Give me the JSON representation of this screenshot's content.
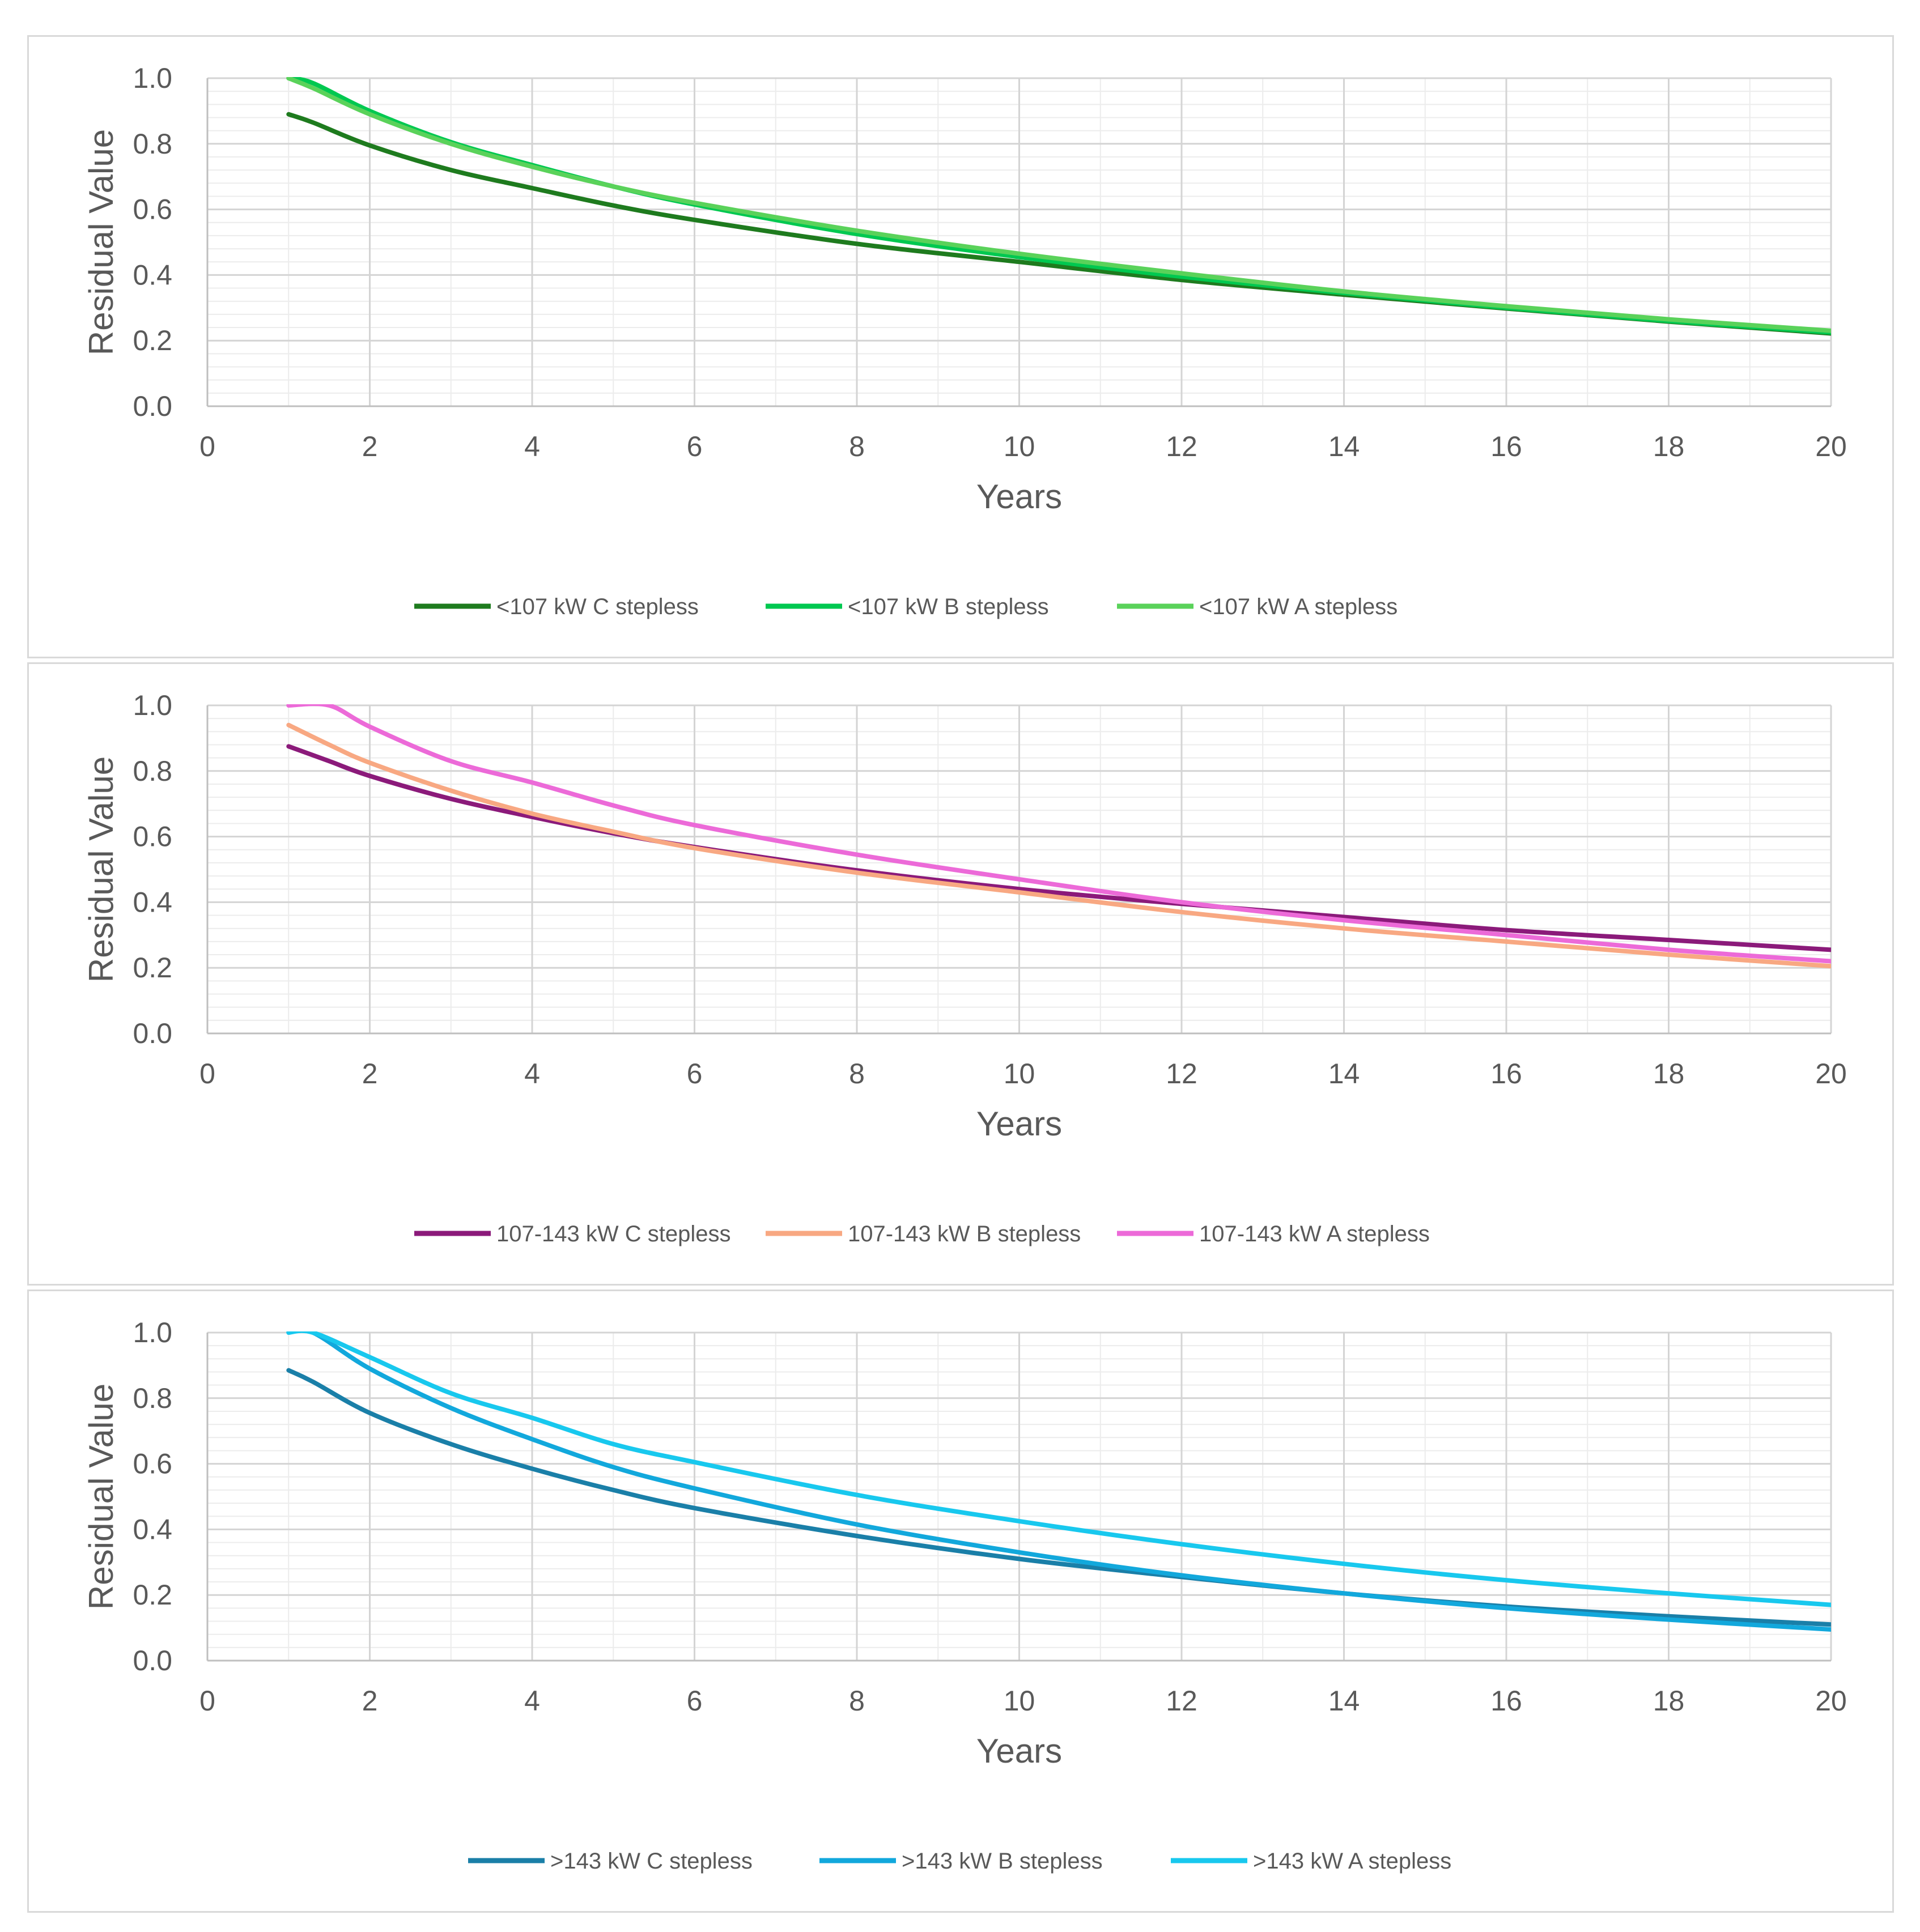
{
  "chart_data": [
    {
      "type": "line",
      "title": "",
      "xlabel": "Years",
      "ylabel": "Residual Value",
      "xlim": [
        0,
        20
      ],
      "ylim": [
        0,
        1
      ],
      "x_ticks": [
        "0",
        "2",
        "4",
        "6",
        "8",
        "10",
        "12",
        "14",
        "16",
        "18",
        "20"
      ],
      "y_ticks": [
        "0.0",
        "0.2",
        "0.4",
        "0.6",
        "0.8",
        "1.0"
      ],
      "grid": true,
      "legend_position": "bottom",
      "x": [
        1,
        1.3,
        2,
        3,
        4,
        5,
        6,
        8,
        10,
        12,
        14,
        16,
        18,
        20
      ],
      "series": [
        {
          "name": "<107 kW  C stepless",
          "color": "#1e7b1e",
          "values": [
            0.89,
            0.865,
            0.795,
            0.72,
            0.665,
            0.612,
            0.568,
            0.495,
            0.44,
            0.385,
            0.34,
            0.298,
            0.258,
            0.222
          ]
        },
        {
          "name": "<107 kW  B stepless",
          "color": "#00c850",
          "values": [
            1.0,
            0.985,
            0.9,
            0.805,
            0.735,
            0.67,
            0.615,
            0.525,
            0.455,
            0.395,
            0.345,
            0.3,
            0.26,
            0.225
          ]
        },
        {
          "name": "<107 kW  A stepless",
          "color": "#5ad25a",
          "values": [
            1.0,
            0.97,
            0.89,
            0.8,
            0.73,
            0.67,
            0.62,
            0.535,
            0.465,
            0.405,
            0.35,
            0.305,
            0.265,
            0.23
          ]
        }
      ]
    },
    {
      "type": "line",
      "title": "",
      "xlabel": "Years",
      "ylabel": "Residual Value",
      "xlim": [
        0,
        20
      ],
      "ylim": [
        0,
        1
      ],
      "x_ticks": [
        "0",
        "2",
        "4",
        "6",
        "8",
        "10",
        "12",
        "14",
        "16",
        "18",
        "20"
      ],
      "y_ticks": [
        "0.0",
        "0.2",
        "0.4",
        "0.6",
        "0.8",
        "1.0"
      ],
      "grid": true,
      "legend_position": "bottom",
      "x": [
        1,
        1.5,
        2,
        3,
        4,
        5,
        6,
        8,
        10,
        12,
        14,
        16,
        18,
        20
      ],
      "series": [
        {
          "name": "107-143 kW  C stepless",
          "color": "#8b1a7a",
          "values": [
            0.875,
            0.83,
            0.785,
            0.715,
            0.66,
            0.61,
            0.568,
            0.497,
            0.44,
            0.395,
            0.355,
            0.315,
            0.285,
            0.255
          ]
        },
        {
          "name": "107-143 kW  B stepless",
          "color": "#f8a882",
          "values": [
            0.94,
            0.88,
            0.825,
            0.74,
            0.67,
            0.615,
            0.565,
            0.49,
            0.43,
            0.37,
            0.32,
            0.28,
            0.24,
            0.205
          ]
        },
        {
          "name": "107-143 kW  A stepless",
          "color": "#ec6ad8",
          "values": [
            1.0,
            1.0,
            0.935,
            0.83,
            0.765,
            0.695,
            0.635,
            0.545,
            0.47,
            0.4,
            0.345,
            0.3,
            0.255,
            0.22
          ]
        }
      ]
    },
    {
      "type": "line",
      "title": "",
      "xlabel": "Years",
      "ylabel": "Residual Value",
      "xlim": [
        0,
        20
      ],
      "ylim": [
        0,
        1
      ],
      "x_ticks": [
        "0",
        "2",
        "4",
        "6",
        "8",
        "10",
        "12",
        "14",
        "16",
        "18",
        "20"
      ],
      "y_ticks": [
        "0.0",
        "0.2",
        "0.4",
        "0.6",
        "0.8",
        "1.0"
      ],
      "grid": true,
      "legend_position": "bottom",
      "x": [
        1,
        1.3,
        2,
        3,
        4,
        5,
        6,
        8,
        10,
        12,
        14,
        16,
        18,
        20
      ],
      "series": [
        {
          "name": ">143 kW  C stepless",
          "color": "#1a7fa8",
          "values": [
            0.885,
            0.85,
            0.755,
            0.66,
            0.585,
            0.52,
            0.465,
            0.38,
            0.31,
            0.255,
            0.205,
            0.165,
            0.135,
            0.11
          ]
        },
        {
          "name": ">143 kW  B stepless",
          "color": "#12a8dc",
          "values": [
            1.0,
            1.0,
            0.89,
            0.77,
            0.675,
            0.59,
            0.525,
            0.415,
            0.33,
            0.26,
            0.205,
            0.16,
            0.125,
            0.095
          ]
        },
        {
          "name": ">143 kW  A stepless",
          "color": "#18c8ee",
          "values": [
            1.0,
            1.0,
            0.925,
            0.815,
            0.74,
            0.66,
            0.605,
            0.505,
            0.425,
            0.355,
            0.295,
            0.245,
            0.205,
            0.17
          ]
        }
      ]
    }
  ]
}
